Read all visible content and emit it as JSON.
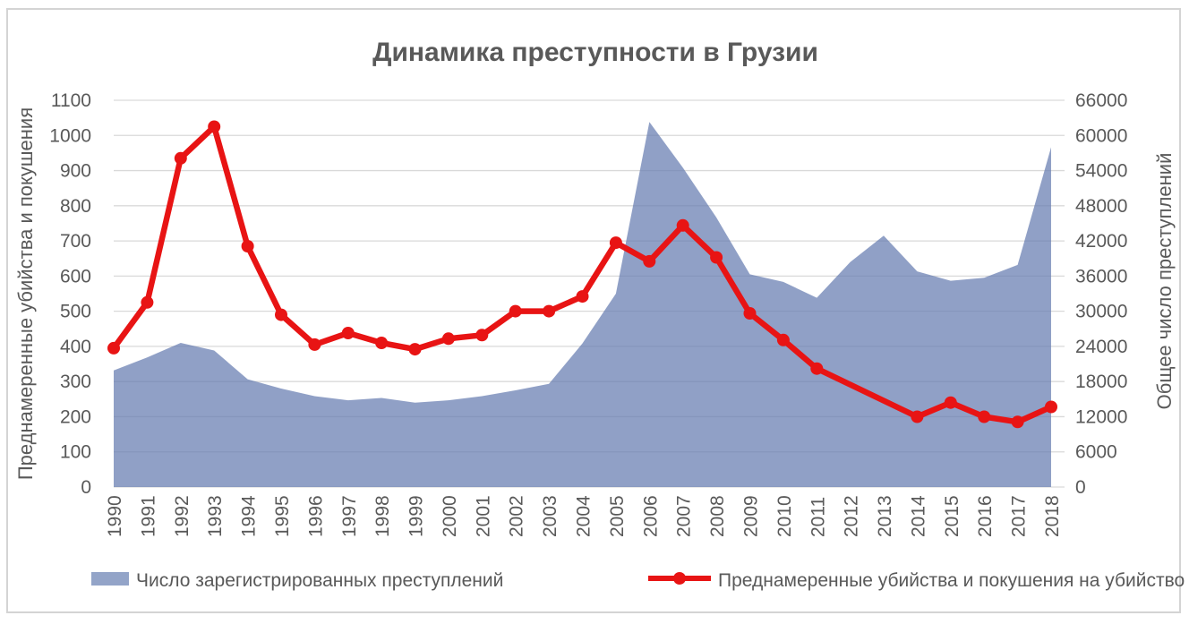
{
  "title": "Динамика преступности в Грузии",
  "y_left": {
    "title": "Преднамеренные убийства и покушения",
    "min": 0,
    "max": 1100,
    "step": 100,
    "ticks": [
      "0",
      "100",
      "200",
      "300",
      "400",
      "500",
      "600",
      "700",
      "800",
      "900",
      "1000",
      "1100"
    ]
  },
  "y_right": {
    "title": "Общее число преступлений",
    "min": 0,
    "max": 66000,
    "step": 6000,
    "ticks": [
      "0",
      "6000",
      "12000",
      "18000",
      "24000",
      "30000",
      "36000",
      "42000",
      "48000",
      "54000",
      "60000",
      "66000"
    ]
  },
  "x_axis": {
    "labels": [
      "1990",
      "1991",
      "1992",
      "1993",
      "1994",
      "1995",
      "1996",
      "1997",
      "1998",
      "1999",
      "2000",
      "2001",
      "2002",
      "2003",
      "2004",
      "2005",
      "2006",
      "2007",
      "2008",
      "2009",
      "2010",
      "2011",
      "2012",
      "2013",
      "2014",
      "2015",
      "2016",
      "2017",
      "2018"
    ],
    "label_rotation_deg": -90
  },
  "legend": {
    "area_label": "Число зарегистрированных преступлений",
    "line_label": "Преднамеренные убийства и покушения на убийство"
  },
  "colors": {
    "line_red": "#e81414",
    "area_fill": "rgba(101,124,176,0.72)",
    "area_swatch": "#93a4c8",
    "gridline": "#d9d9d9",
    "text": "#595959",
    "frame_border": "#d4d4d4"
  },
  "chart_data": {
    "type": "combo",
    "subtypes": [
      "area",
      "line"
    ],
    "title": "Динамика преступности в Грузии",
    "categories": [
      1990,
      1991,
      1992,
      1993,
      1994,
      1995,
      1996,
      1997,
      1998,
      1999,
      2000,
      2001,
      2002,
      2003,
      2004,
      2005,
      2006,
      2007,
      2008,
      2009,
      2010,
      2011,
      2012,
      2013,
      2014,
      2015,
      2016,
      2017,
      2018
    ],
    "series": [
      {
        "name": "Число зарегистрированных преступлений",
        "type": "area",
        "axis": "right",
        "values": [
          19900,
          22100,
          24600,
          23300,
          18400,
          16800,
          15500,
          14800,
          15200,
          14400,
          14800,
          15500,
          16500,
          17600,
          24500,
          33000,
          62300,
          54500,
          46000,
          36300,
          35000,
          32300,
          38400,
          42900,
          36800,
          35200,
          35700,
          37900,
          58000
        ]
      },
      {
        "name": "Преднамеренные убийства и покушения на убийство",
        "type": "line",
        "axis": "left",
        "marker": "circle",
        "values": [
          395,
          525,
          935,
          1025,
          685,
          490,
          405,
          438,
          410,
          392,
          422,
          432,
          500,
          500,
          542,
          695,
          642,
          744,
          653,
          494,
          418,
          337,
          null,
          null,
          200,
          240,
          200,
          185,
          228
        ]
      }
    ],
    "ylabel_left": "Преднамеренные убийства и покушения",
    "ylabel_right": "Общее число преступлений",
    "ylim_left": [
      0,
      1100
    ],
    "ylim_right": [
      0,
      66000
    ],
    "grid": "horizontal",
    "legend_position": "bottom"
  }
}
